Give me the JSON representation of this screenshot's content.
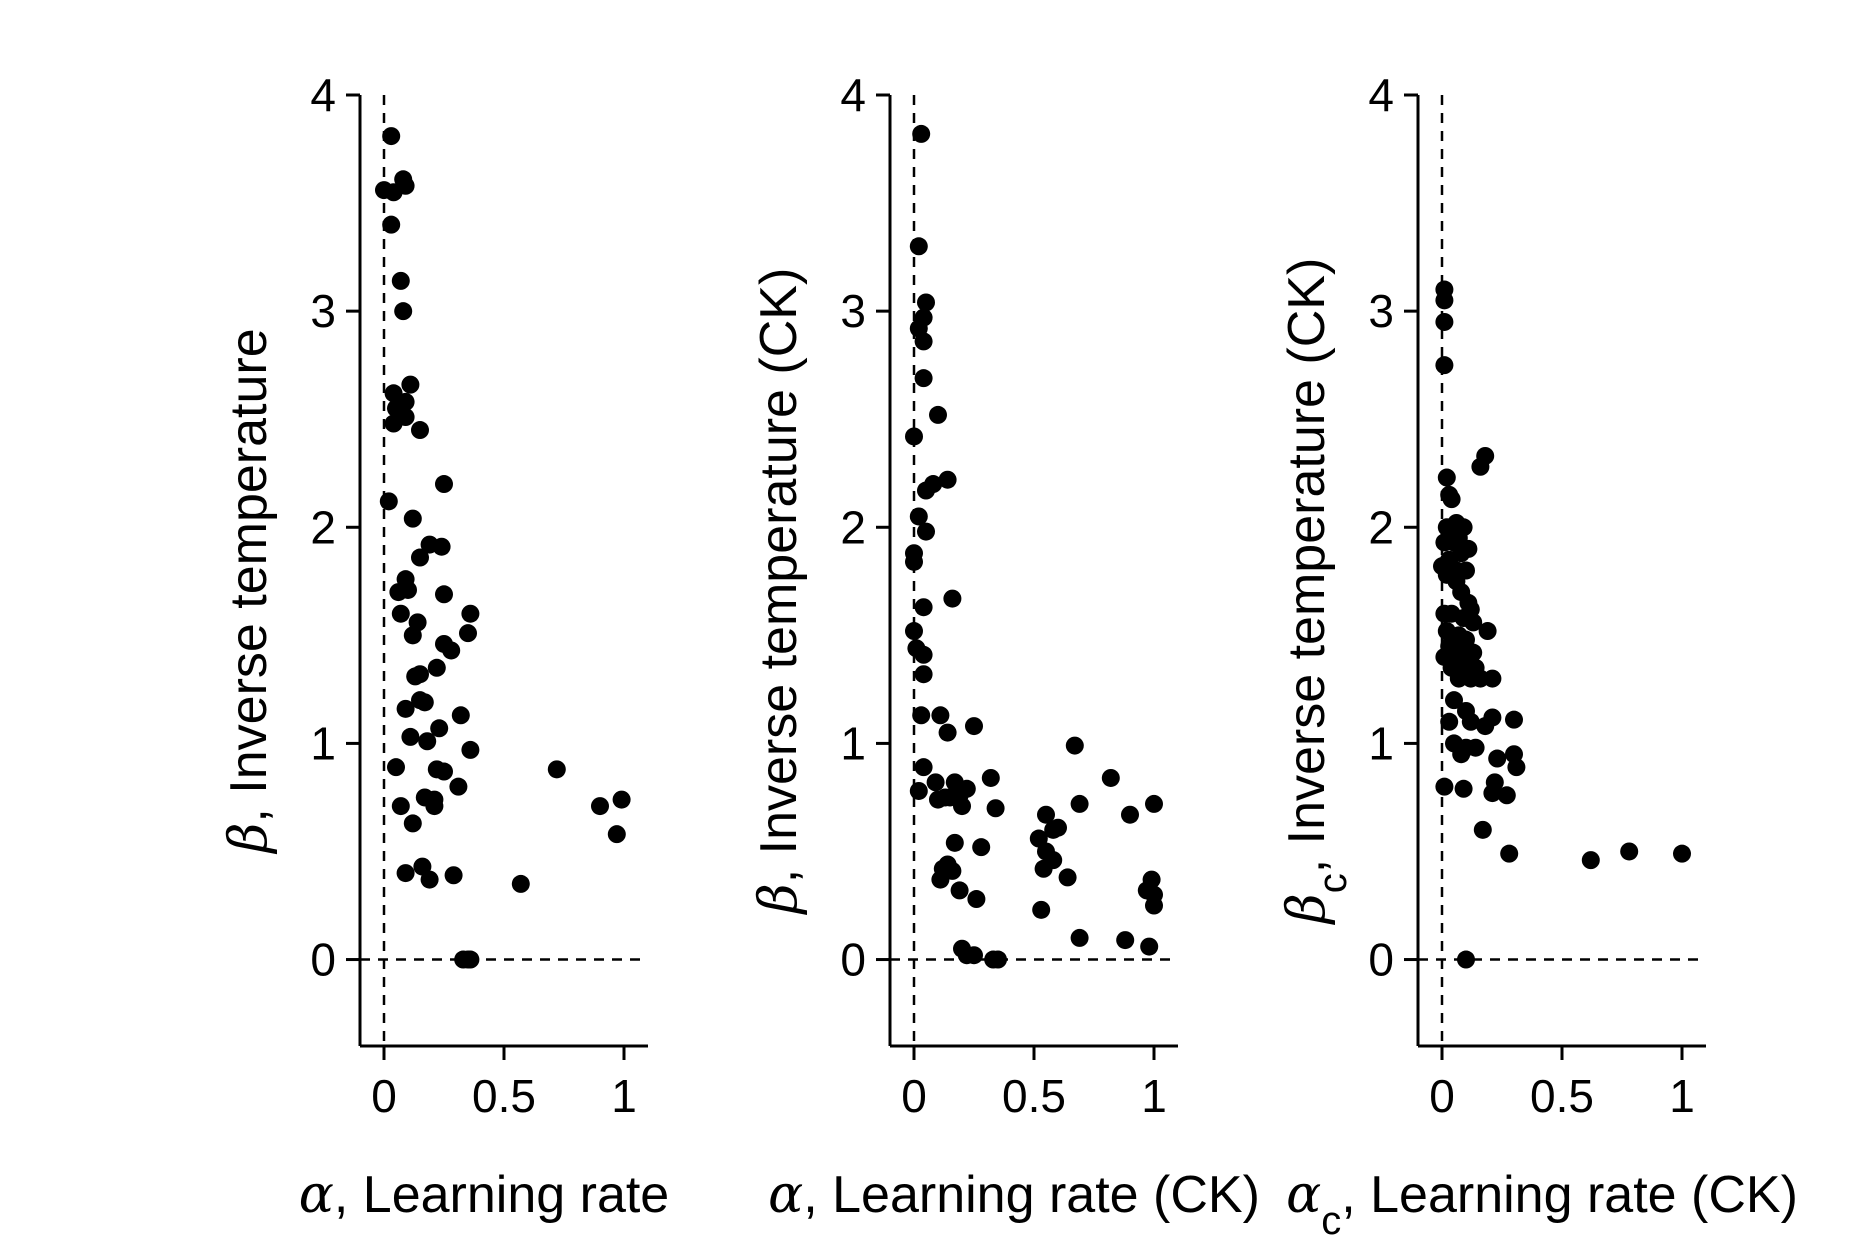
{
  "chart_data": [
    {
      "type": "scatter",
      "xlabel": {
        "symbol": "α",
        "text": ", Learning rate"
      },
      "ylabel": {
        "symbol": "β",
        "text": ", Inverse temperature"
      },
      "xlim": [
        -0.1,
        1.1
      ],
      "ylim": [
        -0.4,
        4
      ],
      "xticks": [
        0,
        0.5,
        1
      ],
      "xticklabels": [
        "0",
        "0.5",
        "1"
      ],
      "yticks": [
        0,
        1,
        2,
        3,
        4
      ],
      "yticklabels": [
        "0",
        "1",
        "2",
        "3",
        "4"
      ],
      "reference_lines": {
        "x": 0,
        "y": 0,
        "style": "dashed"
      },
      "grid": false,
      "marker_color": "#000000",
      "points": [
        [
          0.03,
          3.81
        ],
        [
          0.08,
          3.61
        ],
        [
          0.0,
          3.56
        ],
        [
          0.04,
          3.55
        ],
        [
          0.09,
          3.58
        ],
        [
          0.03,
          3.4
        ],
        [
          0.07,
          3.14
        ],
        [
          0.08,
          3.0
        ],
        [
          0.11,
          2.66
        ],
        [
          0.04,
          2.62
        ],
        [
          0.09,
          2.58
        ],
        [
          0.05,
          2.55
        ],
        [
          0.09,
          2.51
        ],
        [
          0.04,
          2.48
        ],
        [
          0.15,
          2.45
        ],
        [
          0.25,
          2.2
        ],
        [
          0.02,
          2.12
        ],
        [
          0.12,
          2.04
        ],
        [
          0.19,
          1.92
        ],
        [
          0.24,
          1.91
        ],
        [
          0.15,
          1.86
        ],
        [
          0.09,
          1.76
        ],
        [
          0.06,
          1.7
        ],
        [
          0.1,
          1.71
        ],
        [
          0.25,
          1.69
        ],
        [
          0.07,
          1.6
        ],
        [
          0.36,
          1.6
        ],
        [
          0.14,
          1.56
        ],
        [
          0.12,
          1.5
        ],
        [
          0.25,
          1.46
        ],
        [
          0.28,
          1.43
        ],
        [
          0.35,
          1.51
        ],
        [
          0.22,
          1.35
        ],
        [
          0.15,
          1.32
        ],
        [
          0.13,
          1.31
        ],
        [
          0.09,
          1.16
        ],
        [
          0.15,
          1.2
        ],
        [
          0.17,
          1.19
        ],
        [
          0.32,
          1.13
        ],
        [
          0.11,
          1.03
        ],
        [
          0.23,
          1.07
        ],
        [
          0.18,
          1.01
        ],
        [
          0.36,
          0.97
        ],
        [
          0.05,
          0.89
        ],
        [
          0.22,
          0.88
        ],
        [
          0.25,
          0.87
        ],
        [
          0.72,
          0.88
        ],
        [
          0.31,
          0.8
        ],
        [
          0.17,
          0.75
        ],
        [
          0.21,
          0.74
        ],
        [
          0.07,
          0.71
        ],
        [
          0.21,
          0.71
        ],
        [
          0.9,
          0.71
        ],
        [
          0.99,
          0.74
        ],
        [
          0.12,
          0.63
        ],
        [
          0.97,
          0.58
        ],
        [
          0.09,
          0.4
        ],
        [
          0.16,
          0.43
        ],
        [
          0.19,
          0.37
        ],
        [
          0.29,
          0.39
        ],
        [
          0.57,
          0.35
        ],
        [
          0.33,
          0.0
        ],
        [
          0.35,
          0.0
        ],
        [
          0.36,
          0.0
        ]
      ]
    },
    {
      "type": "scatter",
      "xlabel": {
        "symbol": "α",
        "text": ", Learning rate (CK)"
      },
      "ylabel": {
        "symbol": "β",
        "text": ", Inverse temperature (CK)"
      },
      "xlim": [
        -0.1,
        1.1
      ],
      "ylim": [
        -0.4,
        4
      ],
      "xticks": [
        0,
        0.5,
        1
      ],
      "xticklabels": [
        "0",
        "0.5",
        "1"
      ],
      "yticks": [
        0,
        1,
        2,
        3,
        4
      ],
      "yticklabels": [
        "0",
        "1",
        "2",
        "3",
        "4"
      ],
      "reference_lines": {
        "x": 0,
        "y": 0,
        "style": "dashed"
      },
      "grid": false,
      "marker_color": "#000000",
      "points": [
        [
          0.03,
          3.82
        ],
        [
          0.02,
          3.3
        ],
        [
          0.05,
          3.04
        ],
        [
          0.04,
          2.97
        ],
        [
          0.02,
          2.92
        ],
        [
          0.04,
          2.86
        ],
        [
          0.04,
          2.69
        ],
        [
          0.1,
          2.52
        ],
        [
          0.0,
          2.42
        ],
        [
          0.08,
          2.2
        ],
        [
          0.14,
          2.22
        ],
        [
          0.05,
          2.17
        ],
        [
          0.02,
          2.05
        ],
        [
          0.05,
          1.98
        ],
        [
          0.0,
          1.88
        ],
        [
          0.0,
          1.84
        ],
        [
          0.16,
          1.67
        ],
        [
          0.04,
          1.63
        ],
        [
          0.0,
          1.52
        ],
        [
          0.01,
          1.44
        ],
        [
          0.04,
          1.41
        ],
        [
          0.04,
          1.32
        ],
        [
          0.11,
          1.13
        ],
        [
          0.03,
          1.13
        ],
        [
          0.25,
          1.08
        ],
        [
          0.14,
          1.05
        ],
        [
          0.04,
          0.89
        ],
        [
          0.32,
          0.84
        ],
        [
          0.09,
          0.82
        ],
        [
          0.17,
          0.82
        ],
        [
          0.22,
          0.79
        ],
        [
          0.02,
          0.78
        ],
        [
          0.19,
          0.76
        ],
        [
          0.13,
          0.75
        ],
        [
          0.15,
          0.75
        ],
        [
          0.1,
          0.74
        ],
        [
          0.2,
          0.71
        ],
        [
          0.34,
          0.7
        ],
        [
          0.17,
          0.54
        ],
        [
          0.28,
          0.52
        ],
        [
          0.14,
          0.44
        ],
        [
          0.12,
          0.42
        ],
        [
          0.16,
          0.41
        ],
        [
          0.11,
          0.37
        ],
        [
          0.19,
          0.32
        ],
        [
          0.26,
          0.28
        ],
        [
          0.2,
          0.05
        ],
        [
          0.22,
          0.02
        ],
        [
          0.25,
          0.02
        ],
        [
          0.33,
          0.0
        ],
        [
          0.35,
          0.0
        ],
        [
          0.67,
          0.99
        ],
        [
          0.82,
          0.84
        ],
        [
          0.55,
          0.67
        ],
        [
          0.6,
          0.61
        ],
        [
          0.58,
          0.6
        ],
        [
          0.69,
          0.72
        ],
        [
          1.0,
          0.72
        ],
        [
          0.9,
          0.67
        ],
        [
          0.52,
          0.56
        ],
        [
          0.55,
          0.5
        ],
        [
          0.58,
          0.46
        ],
        [
          0.54,
          0.42
        ],
        [
          0.64,
          0.38
        ],
        [
          0.99,
          0.37
        ],
        [
          0.97,
          0.32
        ],
        [
          1.0,
          0.3
        ],
        [
          1.0,
          0.25
        ],
        [
          0.53,
          0.23
        ],
        [
          0.69,
          0.1
        ],
        [
          0.88,
          0.09
        ],
        [
          0.98,
          0.06
        ]
      ]
    },
    {
      "type": "scatter",
      "xlabel": {
        "symbol": "α",
        "sub": "c",
        "text": ", Learning rate (CK)"
      },
      "ylabel": {
        "symbol": "β",
        "sub": "c",
        "text": ", Inverse temperature (CK)"
      },
      "xlim": [
        -0.1,
        1.1
      ],
      "ylim": [
        -0.4,
        4
      ],
      "xticks": [
        0,
        0.5,
        1
      ],
      "xticklabels": [
        "0",
        "0.5",
        "1"
      ],
      "yticks": [
        0,
        1,
        2,
        3,
        4
      ],
      "yticklabels": [
        "0",
        "1",
        "2",
        "3",
        "4"
      ],
      "reference_lines": {
        "x": 0,
        "y": 0,
        "style": "dashed"
      },
      "grid": false,
      "marker_color": "#000000",
      "points": [
        [
          0.01,
          3.1
        ],
        [
          0.01,
          3.05
        ],
        [
          0.01,
          2.95
        ],
        [
          0.01,
          2.75
        ],
        [
          0.18,
          2.33
        ],
        [
          0.16,
          2.28
        ],
        [
          0.02,
          2.23
        ],
        [
          0.03,
          2.15
        ],
        [
          0.04,
          2.13
        ],
        [
          0.06,
          2.02
        ],
        [
          0.02,
          2.0
        ],
        [
          0.09,
          2.0
        ],
        [
          0.04,
          1.97
        ],
        [
          0.07,
          1.95
        ],
        [
          0.01,
          1.93
        ],
        [
          0.05,
          1.93
        ],
        [
          0.11,
          1.9
        ],
        [
          0.08,
          1.88
        ],
        [
          0.03,
          1.85
        ],
        [
          0.0,
          1.82
        ],
        [
          0.06,
          1.8
        ],
        [
          0.1,
          1.8
        ],
        [
          0.02,
          1.78
        ],
        [
          0.06,
          1.75
        ],
        [
          0.08,
          1.7
        ],
        [
          0.11,
          1.65
        ],
        [
          0.12,
          1.62
        ],
        [
          0.01,
          1.6
        ],
        [
          0.04,
          1.6
        ],
        [
          0.09,
          1.58
        ],
        [
          0.13,
          1.56
        ],
        [
          0.02,
          1.52
        ],
        [
          0.07,
          1.5
        ],
        [
          0.19,
          1.52
        ],
        [
          0.1,
          1.48
        ],
        [
          0.03,
          1.45
        ],
        [
          0.05,
          1.44
        ],
        [
          0.09,
          1.42
        ],
        [
          0.13,
          1.42
        ],
        [
          0.01,
          1.4
        ],
        [
          0.06,
          1.4
        ],
        [
          0.11,
          1.38
        ],
        [
          0.04,
          1.35
        ],
        [
          0.08,
          1.35
        ],
        [
          0.14,
          1.35
        ],
        [
          0.1,
          1.32
        ],
        [
          0.07,
          1.3
        ],
        [
          0.12,
          1.3
        ],
        [
          0.16,
          1.3
        ],
        [
          0.21,
          1.3
        ],
        [
          0.05,
          1.2
        ],
        [
          0.1,
          1.15
        ],
        [
          0.21,
          1.12
        ],
        [
          0.3,
          1.11
        ],
        [
          0.03,
          1.1
        ],
        [
          0.12,
          1.1
        ],
        [
          0.18,
          1.08
        ],
        [
          0.05,
          1.0
        ],
        [
          0.1,
          0.98
        ],
        [
          0.14,
          0.98
        ],
        [
          0.3,
          0.95
        ],
        [
          0.08,
          0.95
        ],
        [
          0.23,
          0.93
        ],
        [
          0.31,
          0.89
        ],
        [
          0.22,
          0.82
        ],
        [
          0.21,
          0.77
        ],
        [
          0.27,
          0.76
        ],
        [
          0.01,
          0.8
        ],
        [
          0.09,
          0.79
        ],
        [
          0.17,
          0.6
        ],
        [
          0.28,
          0.49
        ],
        [
          0.62,
          0.46
        ],
        [
          0.78,
          0.5
        ],
        [
          1.0,
          0.49
        ],
        [
          0.1,
          0.0
        ]
      ]
    }
  ]
}
